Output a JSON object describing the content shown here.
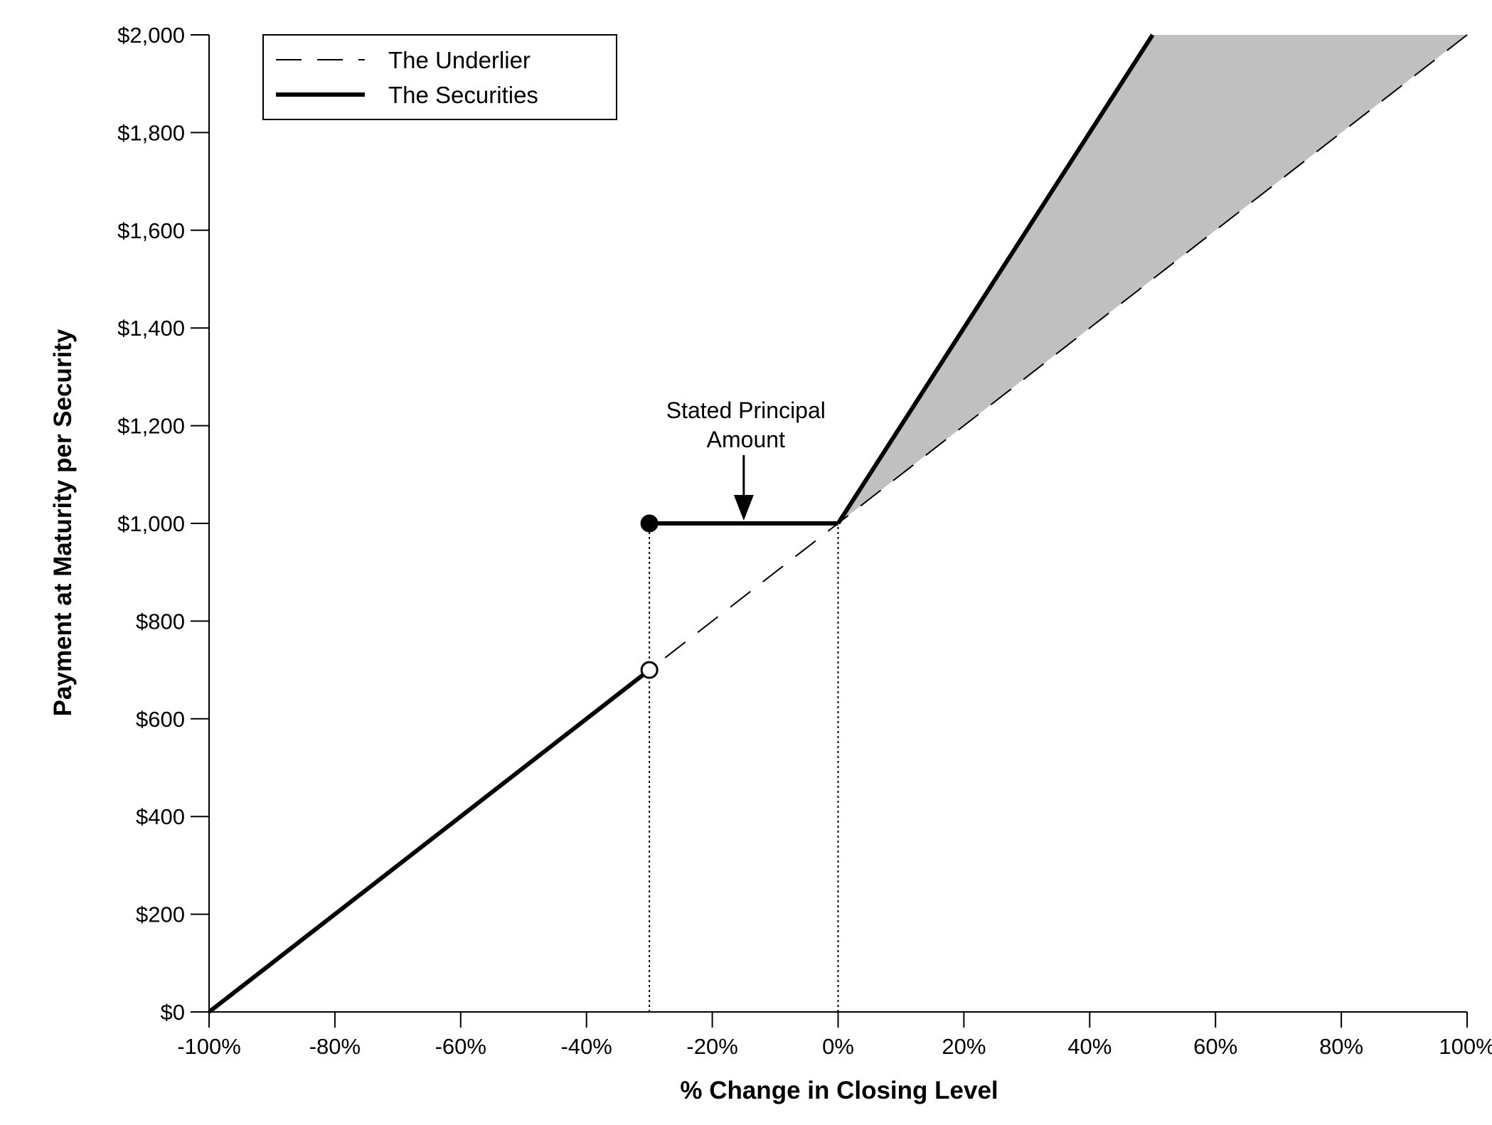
{
  "chart_data": {
    "type": "line",
    "xlabel": "% Change in Closing Level",
    "ylabel": "Payment at Maturity per Security",
    "xlim": [
      -100,
      100
    ],
    "ylim": [
      0,
      2000
    ],
    "x_ticks": [
      -100,
      -80,
      -60,
      -40,
      -20,
      0,
      20,
      40,
      60,
      80,
      100
    ],
    "x_tick_labels": [
      "-100%",
      "-80%",
      "-60%",
      "-40%",
      "-20%",
      "0%",
      "20%",
      "40%",
      "60%",
      "80%",
      "100%"
    ],
    "y_ticks": [
      0,
      200,
      400,
      600,
      800,
      1000,
      1200,
      1400,
      1600,
      1800,
      2000
    ],
    "y_tick_labels": [
      "$0",
      "$200",
      "$400",
      "$600",
      "$800",
      "$1,000",
      "$1,200",
      "$1,400",
      "$1,600",
      "$1,800",
      "$2,000"
    ],
    "legend_position": "top-left",
    "series": [
      {
        "name": "The Underlier",
        "style": "dashed",
        "x": [
          -100,
          100
        ],
        "y": [
          0,
          2000
        ]
      },
      {
        "name": "The Securities",
        "style": "solid-thick",
        "segments": [
          {
            "x": [
              -100,
              -30
            ],
            "y": [
              0,
              700
            ]
          },
          {
            "x": [
              -30,
              0
            ],
            "y": [
              1000,
              1000
            ]
          },
          {
            "x": [
              0,
              50
            ],
            "y": [
              1000,
              2000
            ]
          }
        ]
      }
    ],
    "shaded_region": {
      "x": [
        0,
        50,
        100
      ],
      "y": [
        1000,
        2000,
        2000
      ],
      "fill": "#c0c0c0"
    },
    "markers": [
      {
        "x": -30,
        "y": 1000,
        "type": "filled"
      },
      {
        "x": -30,
        "y": 700,
        "type": "open"
      }
    ],
    "reference_lines": [
      {
        "x": -30,
        "y_top": 1000,
        "style": "dotted"
      },
      {
        "x": 0,
        "y_top": 1000,
        "style": "dotted"
      }
    ],
    "annotation": {
      "lines": [
        "Stated Principal",
        "Amount"
      ],
      "arrow_x": -15,
      "arrow_target_y": 1000
    },
    "colors": {
      "line": "#000000",
      "shade": "#c0c0c0",
      "background": "#ffffff"
    }
  }
}
